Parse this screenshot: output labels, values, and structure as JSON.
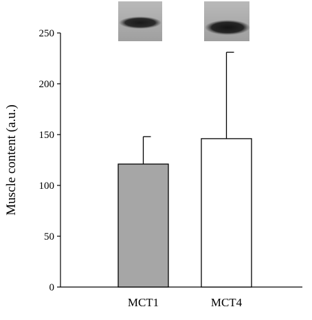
{
  "chart_data": {
    "type": "bar",
    "categories": [
      "MCT1",
      "MCT4"
    ],
    "values": [
      121,
      146
    ],
    "error_upper": [
      148,
      231
    ],
    "ylabel": "Muscle content (a.u.)",
    "xlabel": "",
    "ylim": [
      0,
      250
    ],
    "yticks": [
      0,
      50,
      100,
      150,
      200,
      250
    ],
    "bar_colors": [
      "#a6a6a6",
      "#ffffff"
    ],
    "grid": false,
    "blot_images": [
      "MCT1 western blot band",
      "MCT4 western blot band"
    ]
  }
}
